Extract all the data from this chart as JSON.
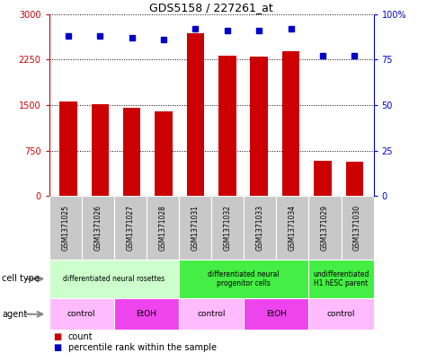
{
  "title": "GDS5158 / 227261_at",
  "samples": [
    "GSM1371025",
    "GSM1371026",
    "GSM1371027",
    "GSM1371028",
    "GSM1371031",
    "GSM1371032",
    "GSM1371033",
    "GSM1371034",
    "GSM1371029",
    "GSM1371030"
  ],
  "counts": [
    1560,
    1510,
    1460,
    1400,
    2680,
    2310,
    2300,
    2390,
    580,
    560
  ],
  "percentiles": [
    88,
    88,
    87,
    86,
    92,
    91,
    91,
    92,
    77,
    77
  ],
  "ylim_left": [
    0,
    3000
  ],
  "ylim_right": [
    0,
    100
  ],
  "yticks_left": [
    0,
    750,
    1500,
    2250,
    3000
  ],
  "yticks_right": [
    0,
    25,
    50,
    75,
    100
  ],
  "bar_color": "#cc0000",
  "dot_color": "#0000cc",
  "cell_type_groups": [
    {
      "label": "differentiated neural rosettes",
      "start": 0,
      "end": 4,
      "color": "#ccffcc"
    },
    {
      "label": "differentiated neural\nprogenitor cells",
      "start": 4,
      "end": 8,
      "color": "#44ee44"
    },
    {
      "label": "undifferentiated\nH1 hESC parent",
      "start": 8,
      "end": 10,
      "color": "#44ee44"
    }
  ],
  "agent_groups": [
    {
      "label": "control",
      "start": 0,
      "end": 2,
      "color": "#ffbbff"
    },
    {
      "label": "EtOH",
      "start": 2,
      "end": 4,
      "color": "#ee44ee"
    },
    {
      "label": "control",
      "start": 4,
      "end": 6,
      "color": "#ffbbff"
    },
    {
      "label": "EtOH",
      "start": 6,
      "end": 8,
      "color": "#ee44ee"
    },
    {
      "label": "control",
      "start": 8,
      "end": 10,
      "color": "#ffbbff"
    }
  ],
  "sample_bg_color": "#c8c8c8",
  "tick_fontsize": 7,
  "bar_width": 0.55
}
